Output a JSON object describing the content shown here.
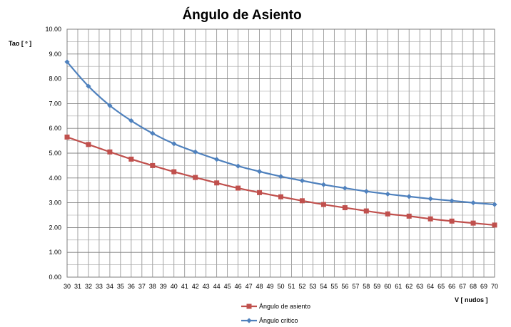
{
  "chart_data": {
    "type": "line",
    "title": "Ángulo de Asiento",
    "xlabel": "V [ nudos ]",
    "ylabel": "Tao [ º ]",
    "xlim": [
      30,
      70
    ],
    "ylim": [
      0,
      10
    ],
    "x_ticks": [
      "30",
      "31",
      "32",
      "33",
      "34",
      "35",
      "36",
      "37",
      "38",
      "39",
      "40",
      "41",
      "42",
      "43",
      "44",
      "45",
      "46",
      "47",
      "48",
      "49",
      "50",
      "51",
      "52",
      "53",
      "54",
      "55",
      "56",
      "57",
      "58",
      "59",
      "60",
      "61",
      "62",
      "63",
      "64",
      "65",
      "66",
      "67",
      "68",
      "69",
      "70"
    ],
    "y_ticks": [
      "0.00",
      "1.00",
      "2.00",
      "3.00",
      "4.00",
      "5.00",
      "6.00",
      "7.00",
      "8.00",
      "9.00",
      "10.00"
    ],
    "grid": true,
    "legend_position": "bottom",
    "series": [
      {
        "name": "Ángulo de asiento",
        "color": "#c0504d",
        "marker": "square",
        "x": [
          30,
          32,
          34,
          36,
          38,
          40,
          42,
          44,
          46,
          48,
          50,
          52,
          54,
          56,
          58,
          60,
          62,
          64,
          66,
          68,
          70
        ],
        "values": [
          5.65,
          5.35,
          5.05,
          4.76,
          4.5,
          4.25,
          4.02,
          3.8,
          3.59,
          3.41,
          3.24,
          3.08,
          2.93,
          2.8,
          2.67,
          2.55,
          2.46,
          2.35,
          2.26,
          2.18,
          2.1
        ]
      },
      {
        "name": "Ángulo crítico",
        "color": "#4f81bd",
        "marker": "diamond",
        "x": [
          30,
          32,
          34,
          36,
          38,
          40,
          42,
          44,
          46,
          48,
          50,
          52,
          54,
          56,
          58,
          60,
          62,
          64,
          66,
          68,
          70
        ],
        "values": [
          8.68,
          7.7,
          6.92,
          6.31,
          5.8,
          5.38,
          5.05,
          4.75,
          4.48,
          4.26,
          4.06,
          3.89,
          3.73,
          3.59,
          3.46,
          3.35,
          3.25,
          3.16,
          3.08,
          3.0,
          2.93
        ]
      }
    ]
  }
}
